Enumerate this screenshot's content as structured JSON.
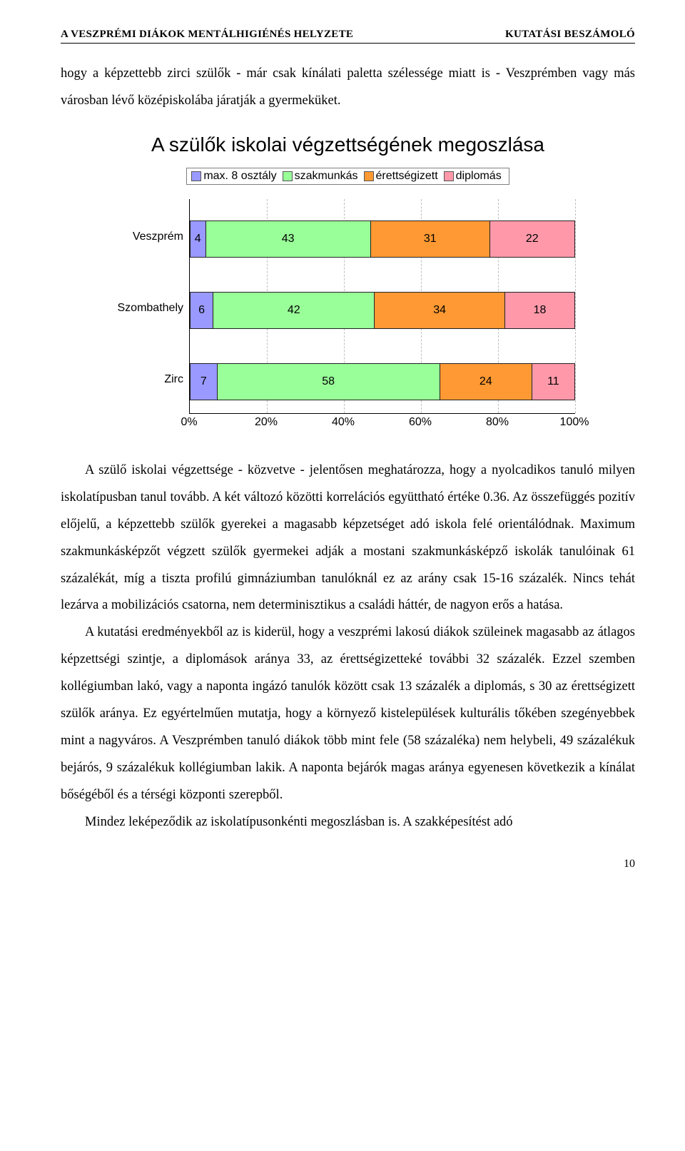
{
  "header": {
    "left": "A VESZPRÉMI DIÁKOK MENTÁLHIGIÉNÉS HELYZETE",
    "right": "KUTATÁSI BESZÁMOLÓ"
  },
  "intro_paragraph": "hogy a képzettebb zirci szülők - már csak kínálati paletta szélessége miatt is - Veszprémben vagy más városban lévő középiskolába járatják a gyermeküket.",
  "chart": {
    "title": "A szülők iskolai végzettségének megoszlása",
    "legend": [
      {
        "label": "max. 8 osztály",
        "color": "#9999ff"
      },
      {
        "label": "szakmunkás",
        "color": "#99ff99"
      },
      {
        "label": "érettségizett",
        "color": "#ff9933"
      },
      {
        "label": "diplomás",
        "color": "#ff99aa"
      }
    ],
    "categories": [
      "Veszprém",
      "Szombathely",
      "Zirc"
    ],
    "series": {
      "Veszprém": [
        4,
        43,
        31,
        22
      ],
      "Szombathely": [
        6,
        42,
        34,
        18
      ],
      "Zirc": [
        7,
        58,
        24,
        11
      ]
    },
    "xticks": [
      "0%",
      "20%",
      "40%",
      "60%",
      "80%",
      "100%"
    ]
  },
  "para2": "A szülő iskolai végzettsége - közvetve - jelentősen meghatározza, hogy a nyolcadikos tanuló milyen iskolatípusban tanul tovább. A két változó közötti korrelációs együttható értéke 0.36. Az összefüggés pozitív előjelű, a képzettebb szülők gyerekei a magasabb képzetséget adó iskola felé orientálódnak. Maximum szakmunkásképzőt végzett szülők gyermekei adják a mostani szakmunkásképző iskolák tanulóinak 61 százalékát, míg a tiszta profilú gimnáziumban tanulóknál ez az arány csak 15-16 százalék. Nincs tehát lezárva a mobilizációs csatorna, nem determinisztikus a családi háttér, de nagyon erős a hatása.",
  "para3": "A kutatási eredményekből az is kiderül, hogy a veszprémi lakosú diákok szüleinek magasabb az átlagos képzettségi szintje, a diplomások aránya 33, az érettségizetteké további 32 százalék. Ezzel szemben kollégiumban lakó, vagy a naponta ingázó tanulók között csak 13 százalék a diplomás, s 30 az érettségizett szülők aránya. Ez egyértelműen mutatja, hogy a környező kistelepülések kulturális tőkében szegényebbek mint a nagyváros. A Veszprémben tanuló diákok több mint fele (58 százaléka) nem helybeli, 49 százalékuk bejárós, 9 százalékuk kollégiumban lakik. A naponta bejárók magas aránya egyenesen következik a kínálat bőségéből és a térségi központi szerepből.",
  "para4": "Mindez leképeződik az iskolatípusonkénti megoszlásban is. A szakképesítést adó",
  "page_number": "10"
}
